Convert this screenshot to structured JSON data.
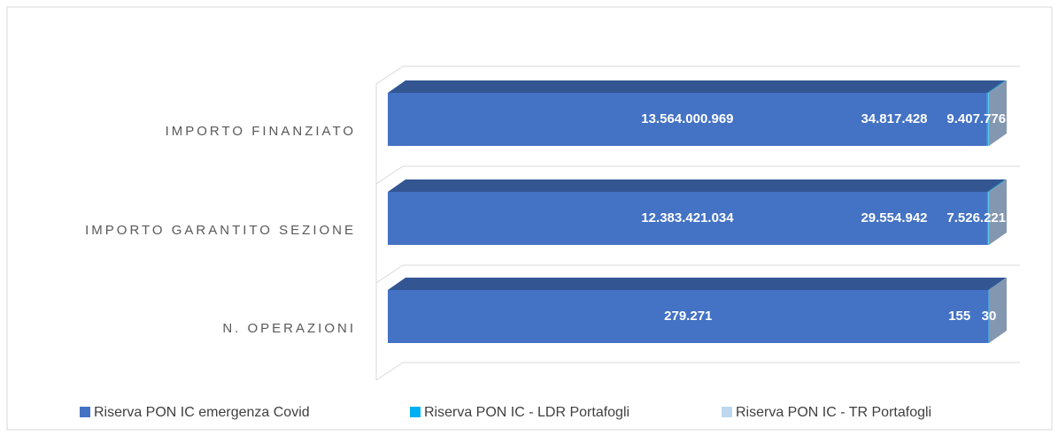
{
  "chart_data": {
    "type": "bar",
    "orientation": "horizontal",
    "stacking": "percent",
    "categories": [
      "IMPORTO FINANZIATO",
      "IMPORTO GARANTITO SEZIONE",
      "N. OPERAZIONI"
    ],
    "series": [
      {
        "name": "Riserva PON IC emergenza Covid",
        "color": "#4472c4",
        "values": [
          13564000969,
          12383421034,
          279271
        ],
        "value_labels": [
          "13.564.000.969",
          "12.383.421.034",
          "279.271"
        ]
      },
      {
        "name": "Riserva PON IC - LDR Portafogli",
        "color": "#00b0f0",
        "values": [
          34817428,
          29554942,
          155
        ],
        "value_labels": [
          "34.817.428",
          "29.554.942",
          "155"
        ]
      },
      {
        "name": "Riserva PON IC - TR Portafogli",
        "color": "#bdd7ee",
        "values": [
          9407776,
          7526221,
          30
        ],
        "value_labels": [
          "9.407.776",
          "7.526.221",
          "30"
        ]
      }
    ],
    "legend": "bottom"
  }
}
